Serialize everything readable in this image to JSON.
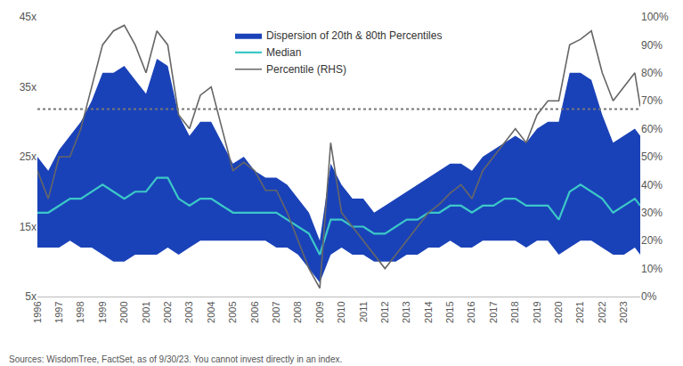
{
  "chart_data": {
    "type": "line",
    "x": [
      1996,
      1996.5,
      1997,
      1997.5,
      1998,
      1998.5,
      1999,
      1999.5,
      2000,
      2000.5,
      2001,
      2001.5,
      2002,
      2002.5,
      2003,
      2003.5,
      2004,
      2004.5,
      2005,
      2005.5,
      2006,
      2006.5,
      2007,
      2007.5,
      2008,
      2008.5,
      2009,
      2009.5,
      2010,
      2010.5,
      2011,
      2011.5,
      2012,
      2012.5,
      2013,
      2013.5,
      2014,
      2014.5,
      2015,
      2015.5,
      2016,
      2016.5,
      2017,
      2017.5,
      2018,
      2018.5,
      2019,
      2019.5,
      2020,
      2020.5,
      2021,
      2021.5,
      2022,
      2022.5,
      2023,
      2023.5,
      2023.75
    ],
    "band": {
      "name": "Dispersion of 20th & 80th Percentiles",
      "color": "#1a42b8",
      "lower": [
        12,
        12,
        12,
        13,
        12,
        12,
        11,
        10,
        10,
        11,
        11,
        11,
        12,
        11,
        12,
        13,
        13,
        13,
        13,
        13,
        13,
        13,
        12,
        12,
        11,
        9,
        7,
        11,
        12,
        11,
        11,
        10,
        10,
        10,
        11,
        11,
        12,
        12,
        13,
        12,
        12,
        13,
        13,
        13,
        13,
        12,
        13,
        13,
        11,
        12,
        13,
        13,
        12,
        11,
        11,
        12,
        11
      ],
      "upper": [
        25,
        23,
        26,
        28,
        30,
        33,
        37,
        37,
        38,
        36,
        34,
        39,
        38,
        31,
        28,
        30,
        30,
        27,
        24,
        25,
        23,
        22,
        22,
        21,
        19,
        17,
        13,
        24,
        21,
        19,
        19,
        17,
        18,
        19,
        20,
        21,
        22,
        23,
        24,
        24,
        23,
        25,
        26,
        27,
        28,
        27,
        29,
        30,
        30,
        37,
        37,
        36,
        31,
        27,
        28,
        29,
        28
      ]
    },
    "series": [
      {
        "name": "Median",
        "color": "#3cc8c8",
        "type": "line",
        "values": [
          17,
          17,
          18,
          19,
          19,
          20,
          21,
          20,
          19,
          20,
          20,
          22,
          22,
          19,
          18,
          19,
          19,
          18,
          17,
          17,
          17,
          17,
          17,
          16,
          15,
          14,
          11,
          16,
          16,
          15,
          15,
          14,
          14,
          15,
          16,
          16,
          17,
          17,
          18,
          18,
          17,
          18,
          18,
          19,
          19,
          18,
          18,
          18,
          16,
          20,
          21,
          20,
          19,
          17,
          18,
          19,
          18
        ]
      },
      {
        "name": "Percentile (RHS)",
        "color": "#666666",
        "type": "line",
        "axis": "y2",
        "values": [
          45,
          35,
          50,
          50,
          60,
          75,
          90,
          95,
          97,
          90,
          80,
          95,
          90,
          65,
          60,
          72,
          75,
          60,
          45,
          48,
          45,
          38,
          38,
          30,
          20,
          10,
          3,
          55,
          30,
          25,
          20,
          15,
          10,
          15,
          20,
          25,
          30,
          33,
          37,
          40,
          35,
          45,
          50,
          55,
          60,
          55,
          65,
          70,
          70,
          90,
          92,
          95,
          80,
          70,
          75,
          80,
          68
        ]
      }
    ],
    "reference_line": {
      "axis": "y2",
      "value": 67,
      "color": "#777777",
      "line_style": "dot"
    },
    "xlim": [
      1996,
      2023.75
    ],
    "xticks": [
      1996,
      1997,
      1998,
      1999,
      2000,
      2001,
      2002,
      2003,
      2004,
      2005,
      2006,
      2007,
      2008,
      2009,
      2010,
      2011,
      2012,
      2013,
      2014,
      2015,
      2016,
      2017,
      2018,
      2019,
      2020,
      2021,
      2022,
      2023
    ],
    "ylim": [
      5,
      45
    ],
    "yticks": [
      {
        "value": 5,
        "label": "5x"
      },
      {
        "value": 15,
        "label": "15x"
      },
      {
        "value": 25,
        "label": "25x"
      },
      {
        "value": 35,
        "label": "35x"
      },
      {
        "value": 45,
        "label": "45x"
      }
    ],
    "y2lim": [
      0,
      100
    ],
    "y2ticks": [
      {
        "value": 0,
        "label": "0%"
      },
      {
        "value": 10,
        "label": "10%"
      },
      {
        "value": 20,
        "label": "20%"
      },
      {
        "value": 30,
        "label": "30%"
      },
      {
        "value": 40,
        "label": "40%"
      },
      {
        "value": 50,
        "label": "50%"
      },
      {
        "value": 60,
        "label": "60%"
      },
      {
        "value": 70,
        "label": "70%"
      },
      {
        "value": 80,
        "label": "80%"
      },
      {
        "value": 90,
        "label": "90%"
      },
      {
        "value": 100,
        "label": "100%"
      }
    ],
    "grid": false,
    "legend": "top",
    "source": "Sources: WisdomTree, FactSet, as of 9/30/23. You cannot invest directly in an index."
  }
}
